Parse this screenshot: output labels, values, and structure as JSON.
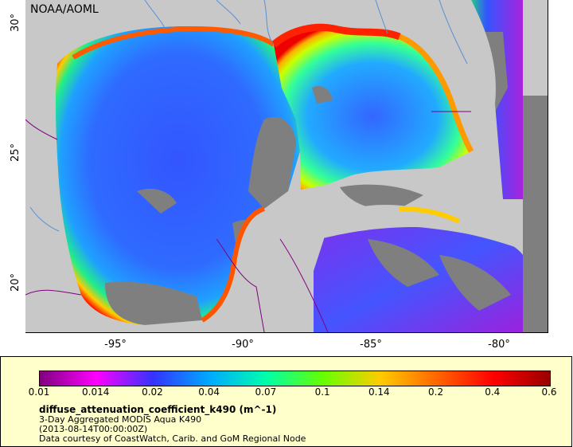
{
  "map": {
    "credit": "NOAA/AOML",
    "lat_ticks": [
      "30°",
      "25°",
      "20°"
    ],
    "lon_ticks": [
      "-95°",
      "-90°",
      "-85°",
      "-80°"
    ]
  },
  "legend": {
    "colorbar_ticks": [
      "0.01",
      "0.014",
      "0.02",
      "0.04",
      "0.07",
      "0.1",
      "0.14",
      "0.2",
      "0.4",
      "0.6"
    ],
    "colorbar_colors": [
      "#800080",
      "#ff00ff",
      "#3333ff",
      "#00aaff",
      "#00ffaa",
      "#66ff00",
      "#ffcc00",
      "#ff6600",
      "#ff0000",
      "#990000"
    ],
    "variable": "diffuse_attenuation_coefficient_k490 (m^-1)",
    "line1": "3-Day Aggregated MODIS Aqua K490",
    "line2": "(2013-08-14T00:00:00Z)",
    "line3": "Data courtesy of CoastWatch, Carib. and GoM Regional Node"
  },
  "colors": {
    "land": "#c8c8c8",
    "nodata": "#7f7f7f",
    "deep_water": "#2a5cff",
    "border_lines": "#800080",
    "rivers": "#5b8fd1"
  }
}
